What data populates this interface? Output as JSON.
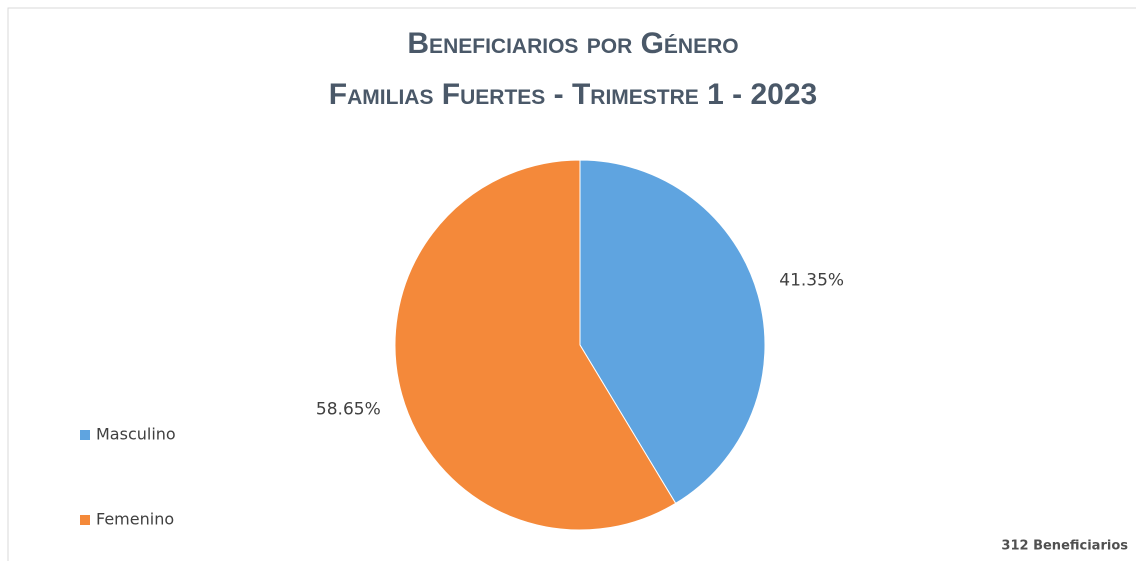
{
  "chart_data": {
    "type": "pie",
    "title": "Beneficiarios por Género",
    "subtitle": "Familias Fuertes - Trimestre 1 - 2023",
    "categories": [
      "Masculino",
      "Femenino"
    ],
    "values": [
      41.35,
      58.65
    ],
    "value_labels": [
      "41.35%",
      "58.65%"
    ],
    "colors": [
      "#5fa4e0",
      "#f4893a"
    ],
    "annotation": "312 Beneficiarios"
  }
}
